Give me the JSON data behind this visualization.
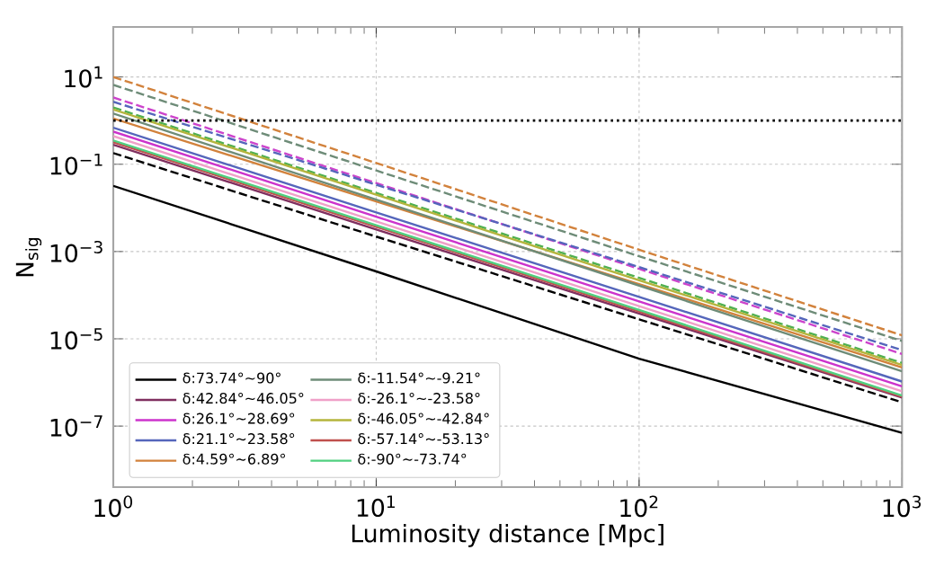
{
  "chart_data": {
    "type": "line",
    "xlabel": "Luminosity distance [Mpc]",
    "ylabel": "N$_{sig}$",
    "x": [
      1,
      10,
      100,
      1000
    ],
    "xlim": [
      1,
      1000
    ],
    "ylim": [
      4e-09,
      140
    ],
    "log": "xy",
    "grid": true,
    "legend": "bottom left",
    "line_style": "solid",
    "xticks": [
      {
        "value": 1,
        "label": "10$^{0}$"
      },
      {
        "value": 10,
        "label": "10$^{1}$"
      },
      {
        "value": 100,
        "label": "10$^{2}$"
      },
      {
        "value": 1000,
        "label": "10$^{3}$"
      }
    ],
    "yticks": [
      {
        "value": 1e-07,
        "label": "10$^{−7}$"
      },
      {
        "value": 1e-05,
        "label": "10$^{−5}$"
      },
      {
        "value": 0.001,
        "label": "10$^{−3}$"
      },
      {
        "value": 0.1,
        "label": "10$^{−1}$"
      },
      {
        "value": 10,
        "label": "10$^{1}$"
      }
    ],
    "ref_lines": [
      {
        "axis": "y",
        "value": 1,
        "color": "#000000",
        "line_style": "dotted"
      }
    ],
    "series": [
      {
        "color": "#d2823c",
        "line_style": "dashed",
        "values": [
          10,
          0.107,
          0.0011,
          1.2e-05
        ]
      },
      {
        "color": "#6e8c78",
        "line_style": "dashed",
        "values": [
          6.6,
          0.072,
          0.00078,
          8.9e-06
        ]
      },
      {
        "color": "#cc44cc",
        "line_style": "dashed",
        "values": [
          3.4,
          0.037,
          0.0004,
          4.5e-06
        ]
      },
      {
        "color": "#5566bb",
        "line_style": "dashed",
        "values": [
          2.7,
          0.034,
          0.00044,
          5.5e-06
        ]
      },
      {
        "color": "#50b050",
        "line_style": "dashed",
        "values": [
          2.0,
          0.022,
          0.00025,
          2.8e-06
        ]
      },
      {
        "color": "#000000",
        "line_style": "dashed",
        "values": [
          0.18,
          0.0022,
          2.8e-05,
          3.5e-07
        ]
      },
      {
        "name": "δ:73.74°~90°",
        "color": "#000000",
        "values": [
          0.032,
          0.00035,
          3.5e-06,
          7e-08
        ]
      },
      {
        "name": "δ:42.84°~46.05°",
        "color": "#7f2f5f",
        "values": [
          0.28,
          0.0032,
          3.8e-05,
          4.5e-07
        ]
      },
      {
        "name": "δ:26.1°~28.69°",
        "color": "#cc33cc",
        "values": [
          0.56,
          0.0063,
          7.2e-05,
          8.1e-07
        ]
      },
      {
        "name": "δ:21.1°~23.58°",
        "color": "#5566bb",
        "values": [
          0.69,
          0.0079,
          9.1e-05,
          1.05e-06
        ]
      },
      {
        "name": "δ:4.59°~6.89°",
        "color": "#d2823c",
        "values": [
          1.12,
          0.014,
          0.00018,
          2.2e-06
        ]
      },
      {
        "name": "δ:-11.54°~-9.21°",
        "color": "#6e8c78",
        "values": [
          1.45,
          0.0155,
          0.000166,
          1.8e-06
        ]
      },
      {
        "name": "δ:-26.1°~-23.58°",
        "color": "#f0a0c8",
        "values": [
          0.44,
          0.0049,
          5.6e-05,
          6.3e-07
        ]
      },
      {
        "name": "δ:-46.05°~-42.84°",
        "color": "#b4b43c",
        "values": [
          1.8,
          0.02,
          0.00022,
          2.5e-06
        ]
      },
      {
        "name": "δ:-57.14°~-53.13°",
        "color": "#c0504d",
        "values": [
          0.32,
          0.0037,
          4.2e-05,
          4.7e-07
        ]
      },
      {
        "name": "δ:-90°~-73.74°",
        "color": "#50d080",
        "values": [
          0.35,
          0.004,
          4.6e-05,
          5e-07
        ]
      }
    ]
  }
}
